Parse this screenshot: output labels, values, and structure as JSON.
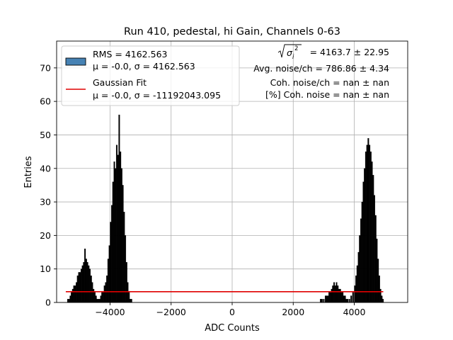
{
  "chart_data": {
    "type": "bar",
    "title": "Run 410, pedestal, hi Gain, Channels 0-63",
    "xlabel": "ADC Counts",
    "ylabel": "Entries",
    "xlim": [
      -5750,
      5750
    ],
    "ylim": [
      0,
      78
    ],
    "grid": true,
    "legend_placement": "top-left",
    "x_ticks": [
      -4000,
      -2000,
      0,
      2000,
      4000
    ],
    "x_tick_labels": [
      "−4000",
      "−2000",
      "0",
      "2000",
      "4000"
    ],
    "y_ticks": [
      0,
      10,
      20,
      30,
      40,
      50,
      60,
      70
    ],
    "y_tick_labels": [
      "0",
      "10",
      "20",
      "30",
      "40",
      "50",
      "60",
      "70"
    ],
    "colors": {
      "histogram": "#000000",
      "legend_patch": "#4682b4",
      "fit": "#e00000",
      "grid": "#b0b0b0"
    },
    "histogram": {
      "bin_width": 40,
      "bins": [
        [
          -5380,
          1
        ],
        [
          -5340,
          1
        ],
        [
          -5300,
          2
        ],
        [
          -5260,
          3
        ],
        [
          -5220,
          4
        ],
        [
          -5180,
          5
        ],
        [
          -5140,
          5
        ],
        [
          -5100,
          6
        ],
        [
          -5060,
          8
        ],
        [
          -5020,
          9
        ],
        [
          -4980,
          9
        ],
        [
          -4940,
          10
        ],
        [
          -4900,
          11
        ],
        [
          -4860,
          12
        ],
        [
          -4820,
          16
        ],
        [
          -4780,
          13
        ],
        [
          -4740,
          12
        ],
        [
          -4700,
          11
        ],
        [
          -4660,
          10
        ],
        [
          -4620,
          8
        ],
        [
          -4580,
          6
        ],
        [
          -4540,
          4
        ],
        [
          -4500,
          3
        ],
        [
          -4460,
          2
        ],
        [
          -4420,
          1
        ],
        [
          -4380,
          1
        ],
        [
          -4340,
          1
        ],
        [
          -4300,
          2
        ],
        [
          -4260,
          3
        ],
        [
          -4220,
          3
        ],
        [
          -4180,
          5
        ],
        [
          -4140,
          6
        ],
        [
          -4100,
          8
        ],
        [
          -4060,
          13
        ],
        [
          -4020,
          17
        ],
        [
          -3980,
          24
        ],
        [
          -3940,
          29
        ],
        [
          -3900,
          36
        ],
        [
          -3860,
          42
        ],
        [
          -3820,
          40
        ],
        [
          -3780,
          47
        ],
        [
          -3740,
          44
        ],
        [
          -3700,
          56
        ],
        [
          -3660,
          45
        ],
        [
          -3620,
          40
        ],
        [
          -3580,
          35
        ],
        [
          -3540,
          27
        ],
        [
          -3500,
          20
        ],
        [
          -3460,
          12
        ],
        [
          -3420,
          6
        ],
        [
          -3380,
          3
        ],
        [
          -3340,
          1
        ],
        [
          -3300,
          1
        ],
        [
          2900,
          1
        ],
        [
          2940,
          1
        ],
        [
          3000,
          1
        ],
        [
          3060,
          2
        ],
        [
          3100,
          2
        ],
        [
          3140,
          2
        ],
        [
          3180,
          3
        ],
        [
          3220,
          3
        ],
        [
          3260,
          4
        ],
        [
          3300,
          5
        ],
        [
          3340,
          6
        ],
        [
          3380,
          5
        ],
        [
          3420,
          6
        ],
        [
          3460,
          5
        ],
        [
          3500,
          4
        ],
        [
          3540,
          4
        ],
        [
          3580,
          3
        ],
        [
          3620,
          3
        ],
        [
          3660,
          2
        ],
        [
          3700,
          2
        ],
        [
          3740,
          1
        ],
        [
          3780,
          1
        ],
        [
          3840,
          1
        ],
        [
          3900,
          2
        ],
        [
          3960,
          3
        ],
        [
          4020,
          5
        ],
        [
          4060,
          8
        ],
        [
          4100,
          11
        ],
        [
          4140,
          15
        ],
        [
          4180,
          20
        ],
        [
          4220,
          25
        ],
        [
          4260,
          30
        ],
        [
          4300,
          36
        ],
        [
          4340,
          40
        ],
        [
          4380,
          45
        ],
        [
          4420,
          47
        ],
        [
          4460,
          49
        ],
        [
          4500,
          47
        ],
        [
          4540,
          45
        ],
        [
          4580,
          42
        ],
        [
          4620,
          38
        ],
        [
          4660,
          32
        ],
        [
          4700,
          26
        ],
        [
          4740,
          19
        ],
        [
          4780,
          13
        ],
        [
          4820,
          8
        ],
        [
          4860,
          4
        ],
        [
          4900,
          2
        ],
        [
          4940,
          1
        ]
      ]
    },
    "fit_line": {
      "x": [
        -5450,
        4950
      ],
      "y": [
        3.2,
        3.2
      ]
    },
    "legend": [
      {
        "label": "RMS = 4162.563",
        "sublabel": "μ = -0.0, σ = 4162.563",
        "type": "patch"
      },
      {
        "label": "Gaussian Fit",
        "sublabel": "μ = -0.0, σ = -11192043.095",
        "type": "line"
      }
    ],
    "annotations": {
      "sigma_value": "= 4163.7 ± 22.95",
      "avg_noise": "Avg. noise/ch = 786.86 ± 4.34",
      "coh_noise": "Coh. noise/ch = nan ± nan",
      "coh_noise_pct": "[%] Coh. noise = nan ± nan"
    }
  }
}
